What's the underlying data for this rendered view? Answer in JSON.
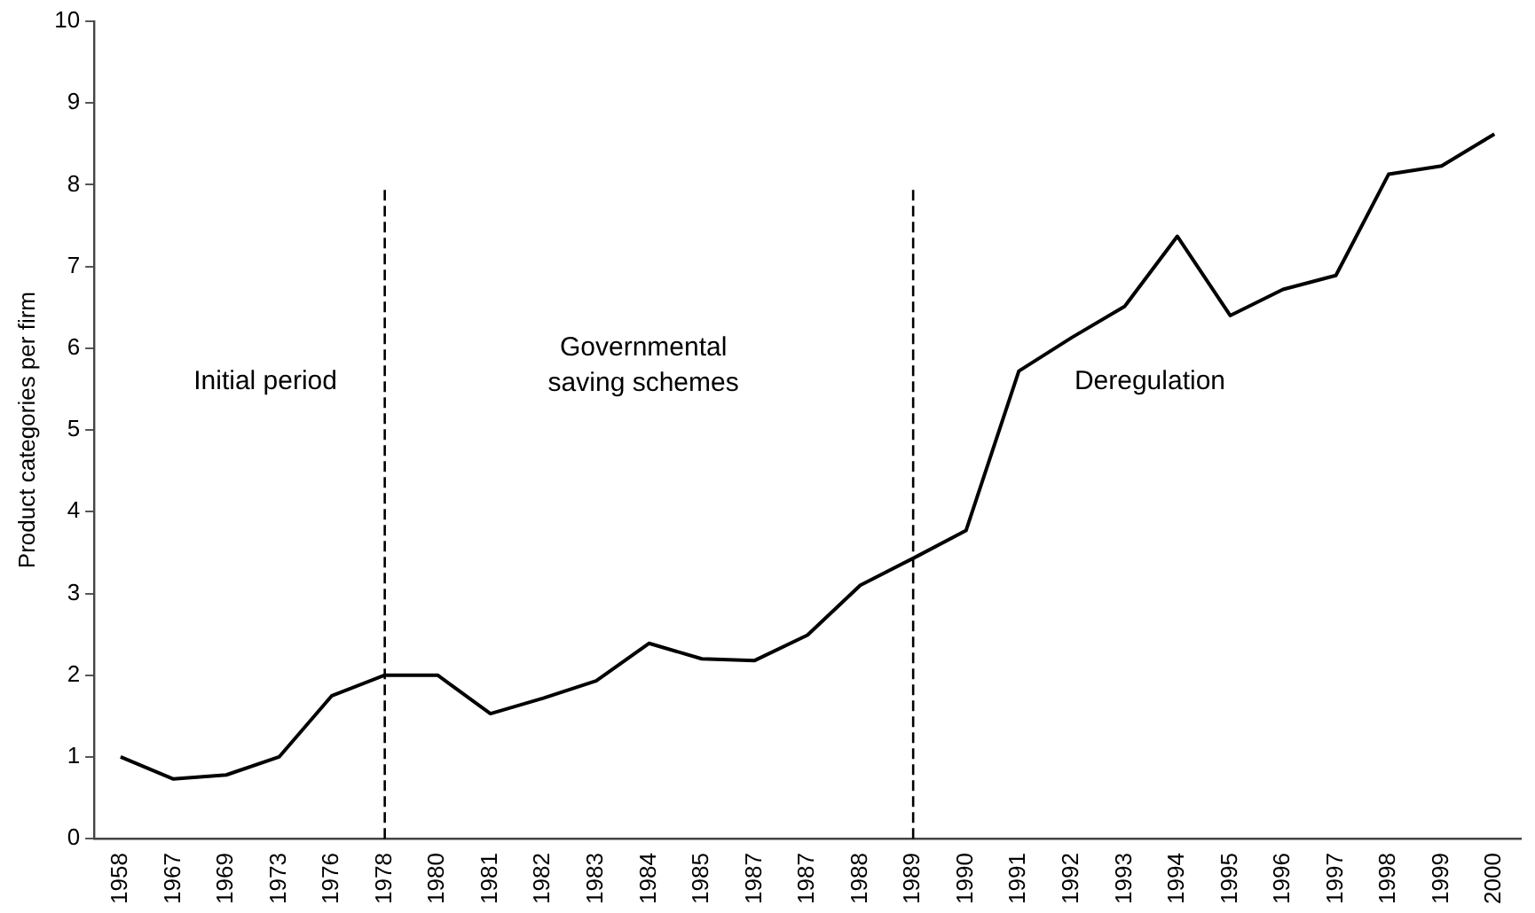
{
  "chart_data": {
    "type": "line",
    "ylabel": "Product categories per firm",
    "categories": [
      "1958",
      "1967",
      "1969",
      "1973",
      "1976",
      "1978",
      "1980",
      "1981",
      "1982",
      "1983",
      "1984",
      "1985",
      "1987",
      "1987",
      "1988",
      "1989",
      "1990",
      "1991",
      "1992",
      "1993",
      "1994",
      "1995",
      "1996",
      "1997",
      "1998",
      "1999",
      "2000"
    ],
    "series": [
      {
        "color": "#000000",
        "values": [
          1.0,
          0.73,
          0.78,
          1.0,
          1.75,
          2.0,
          2.0,
          1.53,
          1.72,
          1.93,
          2.39,
          2.2,
          2.18,
          2.49,
          3.1,
          3.43,
          3.77,
          5.72,
          6.13,
          6.51,
          7.37,
          6.4,
          6.72,
          6.89,
          8.13,
          8.23,
          8.62
        ]
      }
    ],
    "ylim": [
      0,
      10
    ],
    "yticks": [
      0,
      1,
      2,
      3,
      4,
      5,
      6,
      7,
      8,
      9,
      10
    ],
    "ref_lines": [
      {
        "axis": "x",
        "value": "1978",
        "line_style": "dashed",
        "color": "#000000"
      },
      {
        "axis": "x",
        "value": "1989",
        "line_style": "dashed",
        "color": "#000000"
      }
    ],
    "annotations": [
      "Initial period",
      "Governmental\nsaving schemes",
      "Deregulation"
    ],
    "grid": false,
    "legend": false,
    "marker": "none",
    "line_style": "solid"
  }
}
